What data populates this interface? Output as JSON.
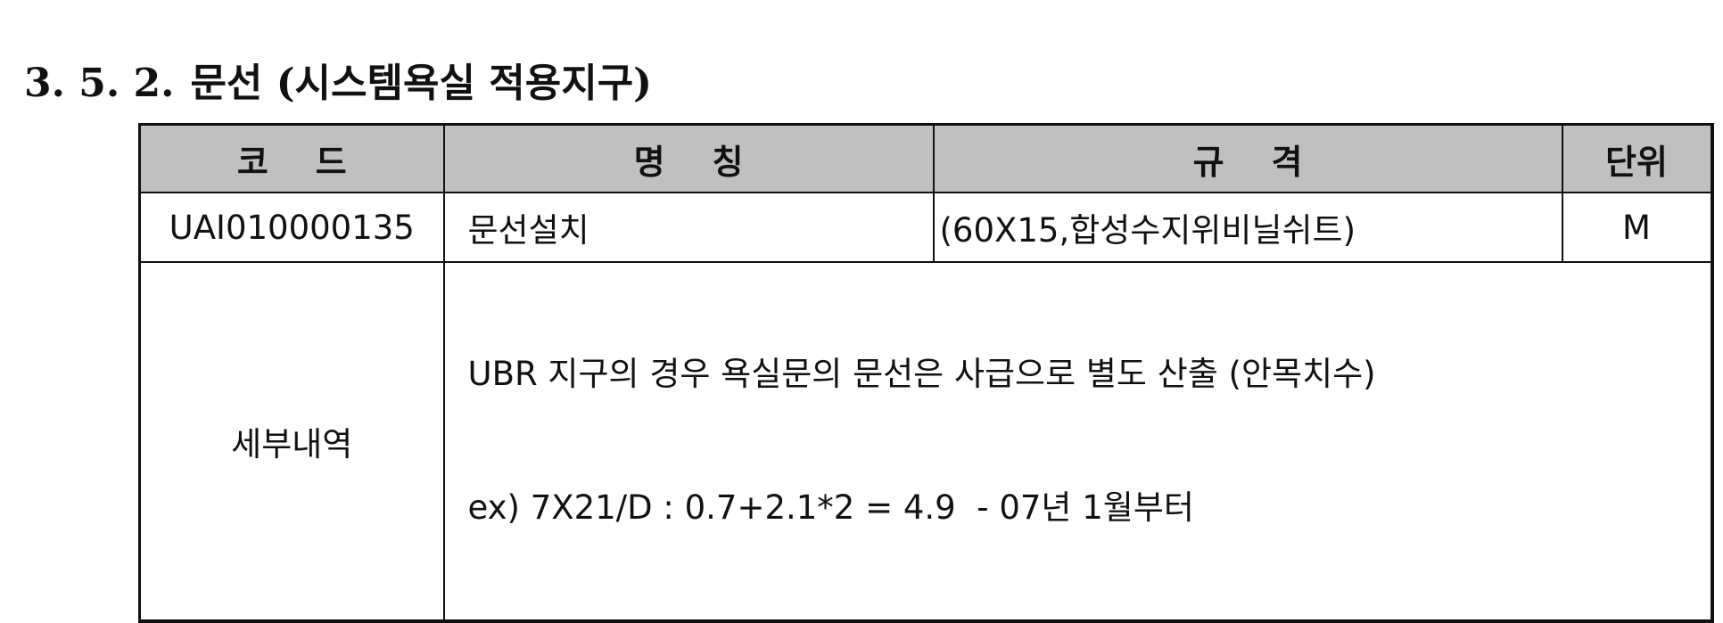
{
  "section": {
    "number": "3. 5. 2.",
    "title": "문선 (시스템욕실 적용지구)"
  },
  "table": {
    "headers": {
      "code": "코    드",
      "name": "명    칭",
      "spec": "규    격",
      "unit": "단위"
    },
    "row": {
      "code": "UAI010000135",
      "name": "문선설치",
      "spec": "(60X15,합성수지위비닐쉬트)",
      "unit": "M"
    },
    "detail": {
      "label": "세부내역",
      "line1": "UBR 지구의 경우 욕실문의 문선은 사급으로 별도 산출 (안목치수)",
      "line2": "ex) 7X21/D : 0.7+2.1*2 = 4.9  - 07년 1월부터"
    }
  }
}
